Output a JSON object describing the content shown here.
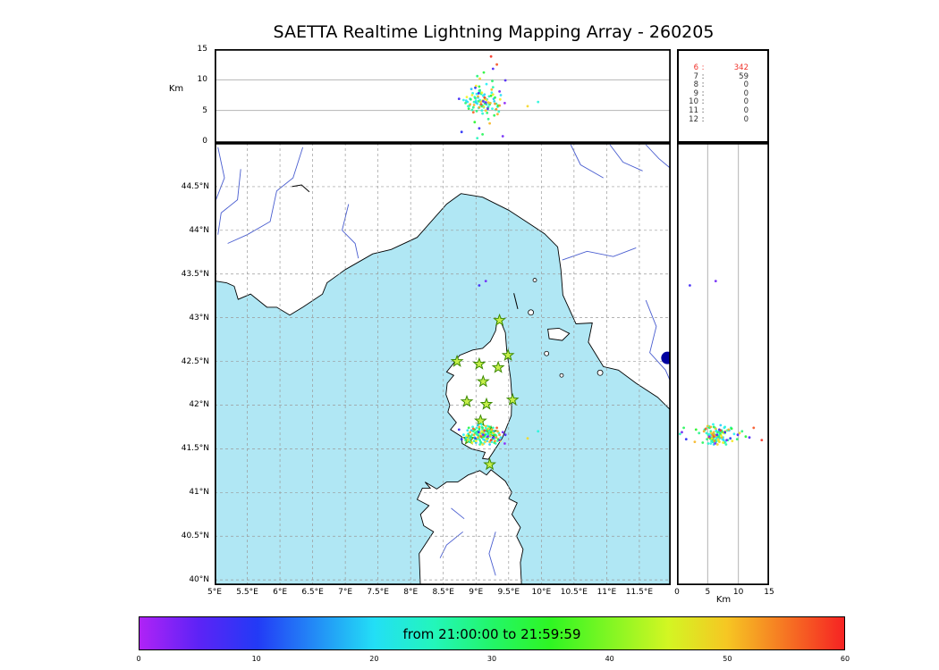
{
  "title": "SAETTA Realtime Lightning Mapping Array - 260205",
  "axes": {
    "km_label": "Km",
    "alt_ticks": [
      0,
      5,
      10,
      15
    ],
    "alt_max": 15,
    "lat_ticks": [
      [
        40,
        "40°N"
      ],
      [
        40.5,
        "40.5°N"
      ],
      [
        41,
        "41°N"
      ],
      [
        41.5,
        "41.5°N"
      ],
      [
        42,
        "42°N"
      ],
      [
        42.5,
        "42.5°N"
      ],
      [
        43,
        "43°N"
      ],
      [
        43.5,
        "43.5°N"
      ],
      [
        44,
        "44°N"
      ],
      [
        44.5,
        "44.5°N"
      ]
    ],
    "lon_ticks": [
      [
        5,
        "5°E"
      ],
      [
        5.5,
        "5.5°E"
      ],
      [
        6,
        "6°E"
      ],
      [
        6.5,
        "6.5°E"
      ],
      [
        7,
        "7°E"
      ],
      [
        7.5,
        "7.5°E"
      ],
      [
        8,
        "8°E"
      ],
      [
        8.5,
        "8.5°E"
      ],
      [
        9,
        "9°E"
      ],
      [
        9.5,
        "9.5°E"
      ],
      [
        10,
        "10°E"
      ],
      [
        10.5,
        "10.5°E"
      ],
      [
        11,
        "11°E"
      ],
      [
        11.5,
        "11.5°E"
      ]
    ]
  },
  "stats_panel": {
    "rows": [
      {
        "label": "6",
        "value": "342",
        "highlight": true
      },
      {
        "label": "7",
        "value": "59",
        "highlight": false
      },
      {
        "label": "8",
        "value": "0",
        "highlight": false
      },
      {
        "label": "9",
        "value": "0",
        "highlight": false
      },
      {
        "label": "10",
        "value": "0",
        "highlight": false
      },
      {
        "label": "11",
        "value": "0",
        "highlight": false
      },
      {
        "label": "12",
        "value": "0",
        "highlight": false
      }
    ]
  },
  "colorbar": {
    "label": "from 21:00:00 to 21:59:59",
    "ticks": [
      "0",
      "10",
      "20",
      "30",
      "40",
      "50",
      "60"
    ],
    "range_minutes": [
      0,
      60
    ]
  },
  "colors": {
    "sea": "#b0e7f4",
    "land": "#ffffff",
    "coast": "#000000",
    "river": "#4a5ed0",
    "grid": "#9a9a9a",
    "star_fill": "#c6ef4a",
    "star_stroke": "#3c8a00",
    "blue_marker": "#0000a0",
    "highlight_red": "#f03028"
  },
  "chart_data": {
    "type": "scatter",
    "title": "SAETTA Realtime Lightning Mapping Array - 260205",
    "panels": [
      {
        "id": "alt-vs-lon",
        "ylabel": "Km",
        "xlim": [
          5,
          11.98
        ],
        "ylim": [
          0,
          15
        ],
        "grid_y": [
          5,
          10
        ]
      },
      {
        "id": "map",
        "xlim": [
          5,
          11.98
        ],
        "ylim": [
          39.94,
          45.0
        ],
        "grid_step_deg": 0.5
      },
      {
        "id": "alt-vs-lat",
        "xlabel": "Km",
        "xlim": [
          0,
          15
        ],
        "ylim": [
          39.94,
          45.0
        ],
        "grid_x": [
          5,
          10
        ]
      }
    ],
    "colorbar": {
      "label": "from 21:00:00 to 21:59:59",
      "range": [
        0,
        60
      ],
      "ticks": [
        0,
        10,
        20,
        30,
        40,
        50,
        60
      ]
    },
    "source_counts": [
      [
        "6",
        342
      ],
      [
        "7",
        59
      ],
      [
        "8",
        0
      ],
      [
        "9",
        0
      ],
      [
        "10",
        0
      ],
      [
        "11",
        0
      ],
      [
        "12",
        0
      ]
    ],
    "stations_lonlat": [
      [
        9.36,
        42.97
      ],
      [
        8.71,
        42.5
      ],
      [
        9.05,
        42.47
      ],
      [
        9.34,
        42.43
      ],
      [
        9.49,
        42.57
      ],
      [
        9.11,
        42.27
      ],
      [
        8.86,
        42.04
      ],
      [
        9.16,
        42.01
      ],
      [
        9.56,
        42.06
      ],
      [
        9.07,
        41.82
      ],
      [
        9.23,
        41.69
      ],
      [
        8.89,
        41.61
      ],
      [
        9.21,
        41.32
      ]
    ],
    "blue_marker_lonlat": [
      11.93,
      42.54
    ],
    "points_lon_lat_altkm_minute": [
      [
        9.02,
        41.66,
        6.1,
        21
      ],
      [
        9.06,
        41.64,
        6.7,
        22
      ],
      [
        9.1,
        41.67,
        5.8,
        20
      ],
      [
        8.98,
        41.63,
        7.2,
        24
      ],
      [
        9.13,
        41.65,
        6.3,
        19
      ],
      [
        9.04,
        41.62,
        5.4,
        23
      ],
      [
        9.08,
        41.68,
        7.8,
        25
      ],
      [
        9.16,
        41.63,
        6.0,
        18
      ],
      [
        8.94,
        41.66,
        5.1,
        26
      ],
      [
        9.0,
        41.69,
        6.6,
        22
      ],
      [
        9.11,
        41.61,
        7.4,
        21
      ],
      [
        9.19,
        41.66,
        5.6,
        20
      ],
      [
        9.05,
        41.71,
        8.2,
        24
      ],
      [
        8.91,
        41.62,
        6.9,
        19
      ],
      [
        9.22,
        41.64,
        6.2,
        23
      ],
      [
        9.07,
        41.58,
        5.9,
        25
      ],
      [
        9.14,
        41.7,
        7.0,
        18
      ],
      [
        8.97,
        41.59,
        6.4,
        26
      ],
      [
        9.25,
        41.67,
        5.3,
        22
      ],
      [
        9.01,
        41.74,
        7.7,
        21
      ],
      [
        9.17,
        41.59,
        6.8,
        20
      ],
      [
        8.88,
        41.67,
        5.7,
        24
      ],
      [
        9.28,
        41.62,
        6.5,
        19
      ],
      [
        9.09,
        41.75,
        5.0,
        23
      ],
      [
        9.2,
        41.71,
        7.3,
        25
      ],
      [
        8.93,
        41.71,
        8.5,
        18
      ],
      [
        9.31,
        41.65,
        6.1,
        26
      ],
      [
        9.12,
        41.56,
        5.5,
        22
      ],
      [
        9.24,
        41.58,
        7.9,
        21
      ],
      [
        8.85,
        41.63,
        6.6,
        20
      ],
      [
        9.35,
        41.68,
        4.8,
        24
      ],
      [
        9.03,
        41.77,
        7.1,
        19
      ],
      [
        9.15,
        41.74,
        6.2,
        23
      ],
      [
        8.9,
        41.58,
        5.8,
        25
      ],
      [
        9.27,
        41.7,
        6.9,
        18
      ],
      [
        9.06,
        41.55,
        8.0,
        26
      ],
      [
        9.18,
        41.76,
        5.2,
        22
      ],
      [
        8.81,
        41.66,
        6.7,
        21
      ],
      [
        9.38,
        41.63,
        7.5,
        20
      ],
      [
        9.1,
        41.72,
        4.5,
        24
      ],
      [
        9.21,
        41.55,
        6.0,
        19
      ],
      [
        8.95,
        41.75,
        7.8,
        23
      ],
      [
        9.33,
        41.59,
        5.6,
        25
      ],
      [
        9.0,
        41.57,
        6.3,
        18
      ],
      [
        9.26,
        41.74,
        8.8,
        26
      ],
      [
        9.08,
        41.78,
        5.9,
        22
      ],
      [
        9.16,
        41.67,
        9.3,
        21
      ],
      [
        8.87,
        41.71,
        6.4,
        20
      ],
      [
        9.3,
        41.56,
        5.1,
        24
      ],
      [
        9.13,
        41.6,
        7.6,
        19
      ],
      [
        9.04,
        41.65,
        6.5,
        30
      ],
      [
        9.09,
        41.63,
        5.7,
        31
      ],
      [
        8.99,
        41.68,
        7.0,
        29
      ],
      [
        9.14,
        41.66,
        6.1,
        32
      ],
      [
        9.06,
        41.6,
        8.3,
        28
      ],
      [
        9.18,
        41.62,
        5.4,
        33
      ],
      [
        8.92,
        41.64,
        6.8,
        30
      ],
      [
        9.23,
        41.69,
        7.4,
        34
      ],
      [
        9.01,
        41.61,
        4.9,
        29
      ],
      [
        9.11,
        41.69,
        6.6,
        31
      ],
      [
        8.96,
        41.7,
        5.5,
        28
      ],
      [
        9.29,
        41.66,
        7.1,
        32
      ],
      [
        9.05,
        41.73,
        8.9,
        33
      ],
      [
        9.17,
        41.72,
        4.6,
        30
      ],
      [
        8.84,
        41.6,
        6.2,
        29
      ],
      [
        9.34,
        41.61,
        5.8,
        34
      ],
      [
        9.08,
        41.57,
        7.7,
        28
      ],
      [
        9.21,
        41.75,
        6.0,
        31
      ],
      [
        8.89,
        41.74,
        5.3,
        32
      ],
      [
        9.25,
        41.61,
        9.8,
        30
      ],
      [
        9.02,
        41.7,
        10.6,
        29
      ],
      [
        9.12,
        41.64,
        11.2,
        33
      ],
      [
        9.19,
        41.68,
        3.6,
        28
      ],
      [
        8.98,
        41.72,
        3.1,
        34
      ],
      [
        9.28,
        41.57,
        4.2,
        31
      ],
      [
        9.07,
        41.65,
        6.4,
        50
      ],
      [
        9.12,
        41.68,
        5.6,
        49
      ],
      [
        9.03,
        41.63,
        7.3,
        51
      ],
      [
        9.16,
        41.61,
        6.7,
        48
      ],
      [
        8.97,
        41.66,
        5.9,
        52
      ],
      [
        9.22,
        41.65,
        6.2,
        50
      ],
      [
        9.09,
        41.7,
        7.9,
        47
      ],
      [
        9.31,
        41.63,
        5.2,
        53
      ],
      [
        9.14,
        41.58,
        6.9,
        49
      ],
      [
        8.91,
        41.69,
        6.0,
        51
      ],
      [
        9.26,
        41.68,
        7.6,
        48
      ],
      [
        9.05,
        41.75,
        5.5,
        52
      ],
      [
        9.19,
        41.73,
        6.3,
        50
      ],
      [
        8.86,
        41.65,
        7.2,
        47
      ],
      [
        9.36,
        41.66,
        5.8,
        53
      ],
      [
        9.1,
        41.55,
        6.6,
        49
      ],
      [
        9.24,
        41.72,
        8.4,
        51
      ],
      [
        9.0,
        41.59,
        9.0,
        48
      ],
      [
        9.33,
        41.7,
        4.4,
        52
      ],
      [
        9.15,
        41.76,
        5.0,
        50
      ],
      [
        8.94,
        41.57,
        7.5,
        47
      ],
      [
        9.29,
        41.59,
        6.1,
        53
      ],
      [
        9.06,
        41.68,
        10.2,
        49
      ],
      [
        9.21,
        41.58,
        2.9,
        51
      ],
      [
        9.37,
        41.59,
        6.8,
        48
      ],
      [
        9.11,
        41.66,
        6.5,
        5
      ],
      [
        9.04,
        41.69,
        7.8,
        8
      ],
      [
        9.18,
        41.64,
        5.3,
        3
      ],
      [
        8.99,
        41.62,
        8.7,
        10
      ],
      [
        9.26,
        41.63,
        11.8,
        6
      ],
      [
        9.41,
        41.69,
        0.8,
        4
      ],
      [
        8.78,
        41.61,
        1.5,
        9
      ],
      [
        9.44,
        41.56,
        6.2,
        2
      ],
      [
        8.74,
        41.72,
        6.9,
        7
      ],
      [
        9.45,
        41.66,
        9.9,
        6
      ],
      [
        9.36,
        41.6,
        8.1,
        4
      ],
      [
        9.05,
        43.37,
        2.1,
        7
      ],
      [
        9.15,
        43.42,
        6.3,
        4
      ],
      [
        9.08,
        41.64,
        6.0,
        57
      ],
      [
        9.13,
        41.71,
        7.1,
        58
      ],
      [
        8.96,
        41.73,
        4.7,
        56
      ],
      [
        9.23,
        41.6,
        13.8,
        59
      ],
      [
        9.32,
        41.74,
        12.5,
        57
      ],
      [
        9.02,
        41.67,
        0.5,
        25
      ],
      [
        9.1,
        41.74,
        1.1,
        31
      ],
      [
        9.79,
        41.62,
        5.7,
        49
      ],
      [
        9.95,
        41.7,
        6.4,
        23
      ]
    ]
  }
}
